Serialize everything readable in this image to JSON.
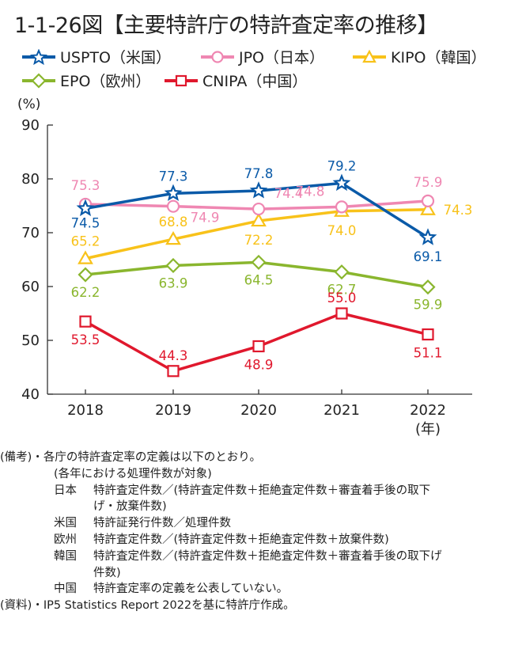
{
  "title": "1-1-26図【主要特許庁の特許査定率の推移】",
  "chart_data": {
    "type": "line",
    "title": "主要特許庁の特許査定率の推移",
    "xlabel": "(年)",
    "ylabel": "(%)",
    "x": [
      "2018",
      "2019",
      "2020",
      "2021",
      "2022"
    ],
    "ylim": [
      40,
      90
    ],
    "yticks": [
      40,
      50,
      60,
      70,
      80,
      90
    ],
    "grid": false,
    "legend_position": "top",
    "series": [
      {
        "name": "USPTO（米国）",
        "color": "#0a5aa8",
        "marker": "star",
        "values": [
          74.5,
          77.3,
          77.8,
          79.2,
          69.1
        ],
        "labels": [
          "74.5",
          "77.3",
          "77.8",
          "79.2",
          "69.1"
        ]
      },
      {
        "name": "JPO（日本）",
        "color": "#ef87b2",
        "marker": "circle",
        "values": [
          75.3,
          74.9,
          74.4,
          74.8,
          75.9
        ],
        "labels": [
          "75.3",
          "74.9",
          "74.4",
          "74.8",
          "75.9"
        ]
      },
      {
        "name": "KIPO（韓国）",
        "color": "#f8c21a",
        "marker": "triangle",
        "values": [
          65.2,
          68.8,
          72.2,
          74.0,
          74.3
        ],
        "labels": [
          "65.2",
          "68.8",
          "72.2",
          "74.0",
          "74.3"
        ]
      },
      {
        "name": "EPO（欧州）",
        "color": "#8ab62e",
        "marker": "diamond",
        "values": [
          62.2,
          63.9,
          64.5,
          62.7,
          59.9
        ],
        "labels": [
          "62.2",
          "63.9",
          "64.5",
          "62.7",
          "59.9"
        ]
      },
      {
        "name": "CNIPA（中国）",
        "color": "#e0182d",
        "marker": "square",
        "values": [
          53.5,
          44.3,
          48.9,
          55.0,
          51.1
        ],
        "labels": [
          "53.5",
          "44.3",
          "48.9",
          "55.0",
          "51.1"
        ]
      }
    ]
  },
  "notes": {
    "remarks_head": "(備考)・各庁の特許査定率の定義は以下のとおり。",
    "scope": "(各年における処理件数が対象)",
    "definitions": [
      {
        "country": "日本",
        "lines": [
          "特許査定件数／(特許査定件数＋拒絶査定件数＋審査着手後の取下",
          "げ・放棄件数)"
        ]
      },
      {
        "country": "米国",
        "lines": [
          "特許証発行件数／処理件数"
        ]
      },
      {
        "country": "欧州",
        "lines": [
          "特許査定件数／(特許査定件数＋拒絶査定件数＋放棄件数)"
        ]
      },
      {
        "country": "韓国",
        "lines": [
          "特許査定件数／(特許査定件数＋拒絶査定件数＋審査着手後の取下げ",
          "件数)"
        ]
      },
      {
        "country": "中国",
        "lines": [
          "特許査定率の定義を公表していない。"
        ]
      }
    ],
    "source": "(資料)・IP5 Statistics Report 2022を基に特許庁作成。"
  }
}
